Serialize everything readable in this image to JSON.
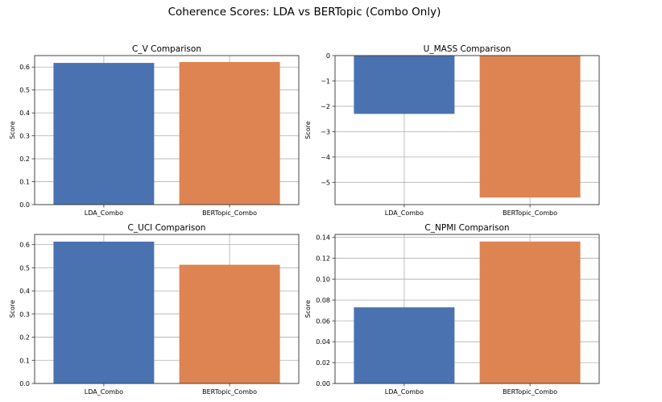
{
  "suptitle": "Coherence Scores: LDA vs BERTopic (Combo Only)",
  "colors": {
    "lda": "#4a72b0",
    "bertopic": "#dd8452",
    "grid": "#b0b0b0"
  },
  "chart_data": [
    {
      "type": "bar",
      "title": "C_V Comparison",
      "xlabel": "",
      "ylabel": "Score",
      "categories": [
        "LDA_Combo",
        "BERTopic_Combo"
      ],
      "values": [
        0.618,
        0.622
      ],
      "ylim": [
        0,
        0.65
      ],
      "yticks": [
        0.0,
        0.1,
        0.2,
        0.3,
        0.4,
        0.5,
        0.6
      ],
      "ytick_labels": [
        "0.0",
        "0.1",
        "0.2",
        "0.3",
        "0.4",
        "0.5",
        "0.6"
      ],
      "grid": true
    },
    {
      "type": "bar",
      "title": "U_MASS Comparison",
      "xlabel": "",
      "ylabel": "Score",
      "categories": [
        "LDA_Combo",
        "BERTopic_Combo"
      ],
      "values": [
        -2.3,
        -5.6
      ],
      "ylim": [
        -5.88,
        0
      ],
      "yticks": [
        0,
        -1,
        -2,
        -3,
        -4,
        -5
      ],
      "ytick_labels": [
        "0",
        "−1",
        "−2",
        "−3",
        "−4",
        "−5"
      ],
      "grid": true
    },
    {
      "type": "bar",
      "title": "C_UCI Comparison",
      "xlabel": "",
      "ylabel": "Score",
      "categories": [
        "LDA_Combo",
        "BERTopic_Combo"
      ],
      "values": [
        0.613,
        0.513
      ],
      "ylim": [
        0,
        0.644
      ],
      "yticks": [
        0.0,
        0.1,
        0.2,
        0.3,
        0.4,
        0.5,
        0.6
      ],
      "ytick_labels": [
        "0.0",
        "0.1",
        "0.2",
        "0.3",
        "0.4",
        "0.5",
        "0.6"
      ],
      "grid": true
    },
    {
      "type": "bar",
      "title": "C_NPMI Comparison",
      "xlabel": "",
      "ylabel": "Score",
      "categories": [
        "LDA_Combo",
        "BERTopic_Combo"
      ],
      "values": [
        0.073,
        0.136
      ],
      "ylim": [
        0,
        0.1428
      ],
      "yticks": [
        0.0,
        0.02,
        0.04,
        0.06,
        0.08,
        0.1,
        0.12,
        0.14
      ],
      "ytick_labels": [
        "0.00",
        "0.02",
        "0.04",
        "0.06",
        "0.08",
        "0.10",
        "0.12",
        "0.14"
      ],
      "grid": true
    }
  ]
}
